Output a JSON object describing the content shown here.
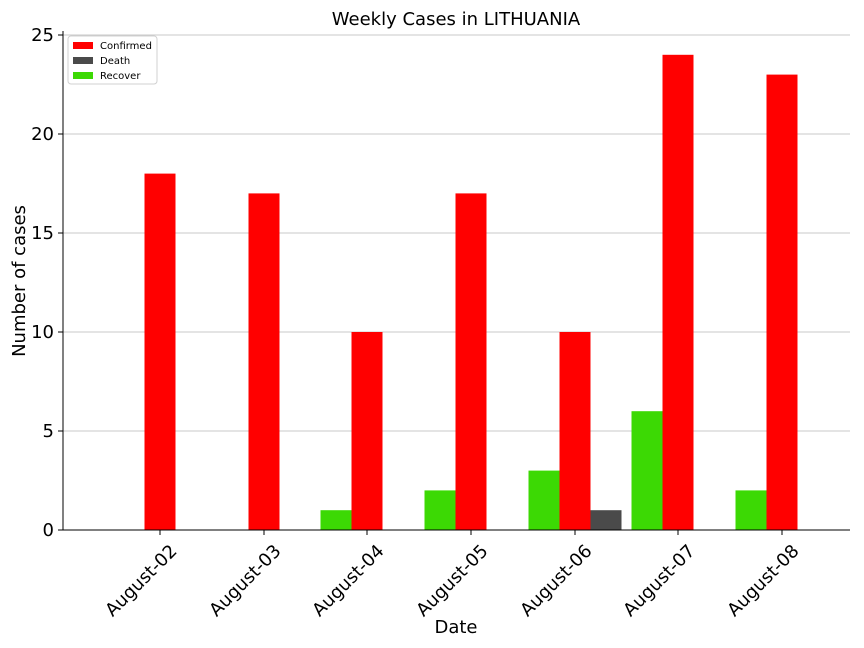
{
  "chart_data": {
    "type": "bar",
    "title": "Weekly Cases in LITHUANIA",
    "xlabel": "Date",
    "ylabel": "Number of cases",
    "categories": [
      "August-02",
      "August-03",
      "August-04",
      "August-05",
      "August-06",
      "August-07",
      "August-08"
    ],
    "series": [
      {
        "name": "Recover",
        "color": "#3cd904",
        "values": [
          0,
          0,
          1,
          2,
          3,
          6,
          2
        ]
      },
      {
        "name": "Confirmed",
        "color": "#ff0000",
        "values": [
          18,
          17,
          10,
          17,
          10,
          24,
          23
        ]
      },
      {
        "name": "Death",
        "color": "#4a4a4a",
        "values": [
          0,
          0,
          0,
          0,
          1,
          0,
          0
        ]
      }
    ],
    "legend_order": [
      "Confirmed",
      "Death",
      "Recover"
    ],
    "ylim": [
      0,
      25
    ],
    "yticks": [
      0,
      5,
      10,
      15,
      20,
      25
    ],
    "grid": "horizontal",
    "legend": "top-left"
  }
}
